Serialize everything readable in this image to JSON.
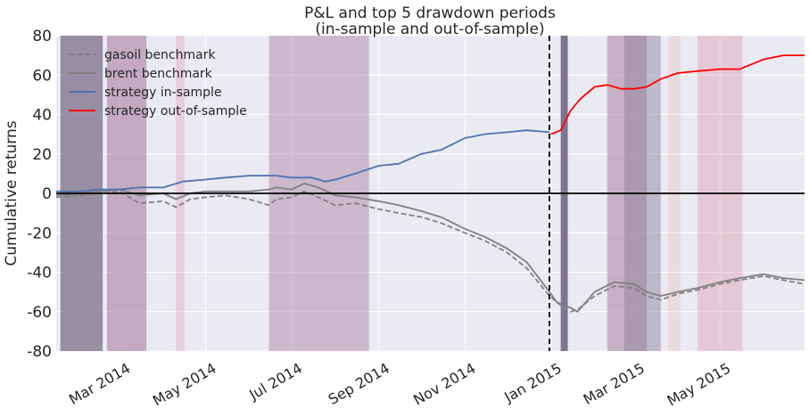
{
  "chart_data": {
    "type": "line",
    "title": "P&L and top 5 drawdown periods",
    "subtitle": "(in-sample and out-of-sample)",
    "xlabel": "",
    "ylabel": "Cumulative returns",
    "xlim": [
      "2014-01-15",
      "2015-06-30"
    ],
    "ylim": [
      -80,
      80
    ],
    "yticks": [
      -80,
      -60,
      -40,
      -20,
      0,
      20,
      40,
      60,
      80
    ],
    "xticks": [
      {
        "date": "2014-03-01",
        "label": "Mar 2014"
      },
      {
        "date": "2014-05-01",
        "label": "May 2014"
      },
      {
        "date": "2014-07-01",
        "label": "Jul 2014"
      },
      {
        "date": "2014-09-01",
        "label": "Sep 2014"
      },
      {
        "date": "2014-11-01",
        "label": "Nov 2014"
      },
      {
        "date": "2015-01-01",
        "label": "Jan 2015"
      },
      {
        "date": "2015-03-01",
        "label": "Mar 2015"
      },
      {
        "date": "2015-05-01",
        "label": "May 2015"
      }
    ],
    "grid": true,
    "legend": "top-left",
    "split_date": "2014-12-31",
    "zero_line": true,
    "series": [
      {
        "name": "gasoil benchmark",
        "color": "#808080",
        "dash": true,
        "x": [
          "2014-01-15",
          "2014-02-01",
          "2014-02-15",
          "2014-03-01",
          "2014-03-15",
          "2014-04-01",
          "2014-04-10",
          "2014-04-20",
          "2014-05-01",
          "2014-05-15",
          "2014-06-01",
          "2014-06-15",
          "2014-06-20",
          "2014-07-01",
          "2014-07-10",
          "2014-07-20",
          "2014-08-01",
          "2014-08-15",
          "2014-09-01",
          "2014-09-15",
          "2014-10-01",
          "2014-10-15",
          "2014-11-01",
          "2014-11-15",
          "2014-12-01",
          "2014-12-15",
          "2014-12-31",
          "2015-01-05",
          "2015-01-10",
          "2015-01-15",
          "2015-01-20",
          "2015-02-01",
          "2015-02-15",
          "2015-03-01",
          "2015-03-10",
          "2015-03-20",
          "2015-04-01",
          "2015-04-15",
          "2015-05-01",
          "2015-05-15",
          "2015-06-01",
          "2015-06-15",
          "2015-06-30"
        ],
        "values": [
          -2,
          -1,
          0,
          1,
          -5,
          -4,
          -7,
          -3,
          -2,
          -1,
          -3,
          -6,
          -3,
          -2,
          1,
          -2,
          -6,
          -5,
          -8,
          -10,
          -12,
          -15,
          -20,
          -24,
          -30,
          -38,
          -52,
          -55,
          -58,
          -60,
          -59,
          -52,
          -47,
          -48,
          -52,
          -54,
          -51,
          -49,
          -46,
          -44,
          -42,
          -44,
          -46
        ]
      },
      {
        "name": "brent benchmark",
        "color": "#808080",
        "dash": false,
        "x": [
          "2014-01-15",
          "2014-02-01",
          "2014-02-15",
          "2014-03-01",
          "2014-03-15",
          "2014-04-01",
          "2014-04-10",
          "2014-04-20",
          "2014-05-01",
          "2014-05-15",
          "2014-06-01",
          "2014-06-15",
          "2014-06-20",
          "2014-07-01",
          "2014-07-10",
          "2014-07-20",
          "2014-08-01",
          "2014-08-15",
          "2014-09-01",
          "2014-09-15",
          "2014-10-01",
          "2014-10-15",
          "2014-11-01",
          "2014-11-15",
          "2014-12-01",
          "2014-12-15",
          "2014-12-31",
          "2015-01-05",
          "2015-01-10",
          "2015-01-15",
          "2015-01-20",
          "2015-02-01",
          "2015-02-15",
          "2015-03-01",
          "2015-03-10",
          "2015-03-20",
          "2015-04-01",
          "2015-04-15",
          "2015-05-01",
          "2015-05-15",
          "2015-06-01",
          "2015-06-15",
          "2015-06-30"
        ],
        "values": [
          -1,
          0,
          1,
          2,
          -1,
          0,
          -3,
          0,
          1,
          1,
          1,
          2,
          3,
          2,
          5,
          3,
          -1,
          -2,
          -4,
          -6,
          -9,
          -12,
          -18,
          -22,
          -28,
          -35,
          -50,
          -55,
          -57,
          -58,
          -60,
          -50,
          -45,
          -46,
          -50,
          -52,
          -50,
          -48,
          -45,
          -43,
          -41,
          -43,
          -44
        ]
      },
      {
        "name": "strategy in-sample",
        "color": "#4c72b0",
        "dash": false,
        "x": [
          "2014-01-15",
          "2014-02-01",
          "2014-02-15",
          "2014-03-01",
          "2014-03-15",
          "2014-04-01",
          "2014-04-15",
          "2014-05-01",
          "2014-05-15",
          "2014-06-01",
          "2014-06-15",
          "2014-06-20",
          "2014-07-01",
          "2014-07-15",
          "2014-07-25",
          "2014-08-01",
          "2014-08-15",
          "2014-09-01",
          "2014-09-15",
          "2014-10-01",
          "2014-10-15",
          "2014-11-01",
          "2014-11-15",
          "2014-12-01",
          "2014-12-15",
          "2014-12-31"
        ],
        "values": [
          1,
          1,
          2,
          2,
          3,
          3,
          6,
          7,
          8,
          9,
          9,
          9,
          8,
          8,
          6,
          7,
          10,
          14,
          15,
          20,
          22,
          28,
          30,
          31,
          32,
          31
        ]
      },
      {
        "name": "strategy out-of-sample",
        "color": "#ff0000",
        "dash": false,
        "x": [
          "2015-01-01",
          "2015-01-08",
          "2015-01-15",
          "2015-01-22",
          "2015-02-01",
          "2015-02-10",
          "2015-02-20",
          "2015-03-01",
          "2015-03-10",
          "2015-03-20",
          "2015-04-01",
          "2015-04-15",
          "2015-05-01",
          "2015-05-15",
          "2015-06-01",
          "2015-06-15",
          "2015-06-30"
        ],
        "values": [
          30,
          32,
          42,
          48,
          54,
          55,
          53,
          53,
          54,
          58,
          61,
          62,
          63,
          63,
          68,
          70,
          70
        ]
      }
    ],
    "drawdown_periods": [
      {
        "start": "2014-01-18",
        "end": "2014-02-17",
        "color": "#8a7e96",
        "alpha": 0.85
      },
      {
        "start": "2014-02-20",
        "end": "2014-03-20",
        "color": "#a97fa1",
        "alpha": 0.6
      },
      {
        "start": "2014-04-10",
        "end": "2014-04-16",
        "color": "#d97a92",
        "alpha": 0.25
      },
      {
        "start": "2014-06-15",
        "end": "2014-08-25",
        "color": "#a97fa1",
        "alpha": 0.45
      },
      {
        "start": "2015-01-08",
        "end": "2015-01-13",
        "color": "#7a6d8a",
        "alpha": 0.95
      },
      {
        "start": "2015-02-10",
        "end": "2015-03-10",
        "color": "#a97fa1",
        "alpha": 0.55
      },
      {
        "start": "2015-02-22",
        "end": "2015-03-20",
        "color": "#8a7e96",
        "alpha": 0.45
      },
      {
        "start": "2015-03-25",
        "end": "2015-04-03",
        "color": "#e6a7a0",
        "alpha": 0.22
      },
      {
        "start": "2015-04-15",
        "end": "2015-05-17",
        "color": "#d97a92",
        "alpha": 0.3
      }
    ]
  }
}
